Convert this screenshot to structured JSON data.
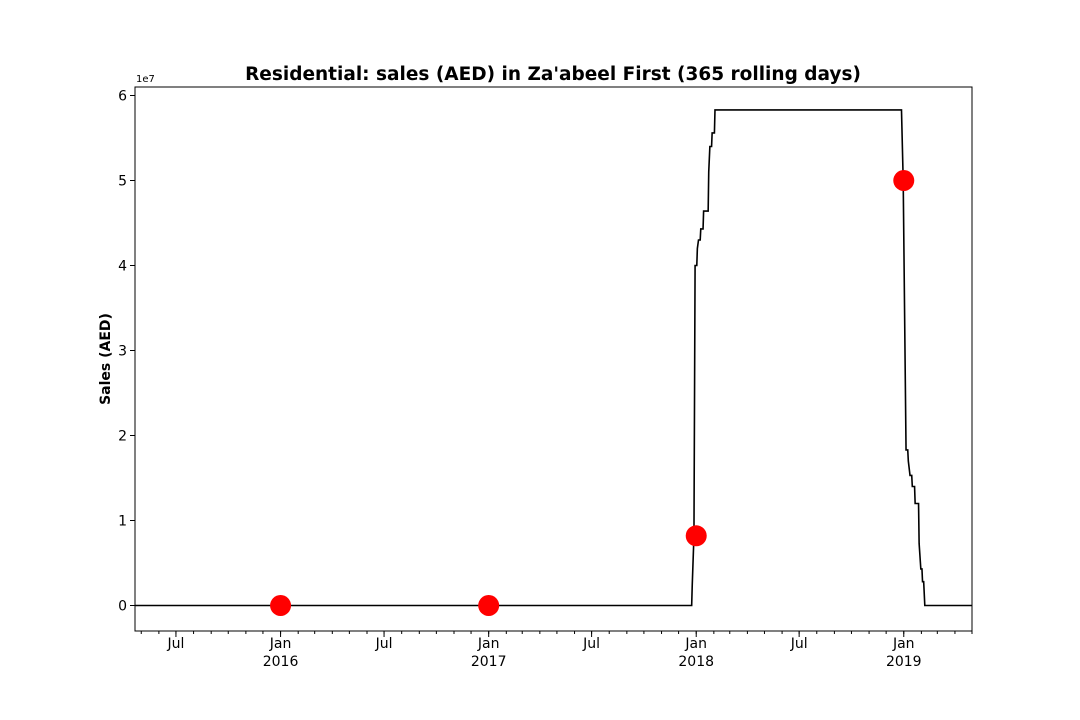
{
  "chart_data": {
    "type": "line",
    "title": "Residential: sales (AED) in Za'abeel First (365 rolling days)",
    "ylabel": "Sales (AED)",
    "xlabel": "",
    "y_offset_label": "1e7",
    "ylim": [
      -3000000,
      61000000
    ],
    "xlim": [
      "2015-04-20",
      "2019-05-01"
    ],
    "y_ticks": [
      0,
      10000000,
      20000000,
      30000000,
      40000000,
      50000000,
      60000000
    ],
    "y_tick_labels": [
      "0",
      "1",
      "2",
      "3",
      "4",
      "5",
      "6"
    ],
    "x_major_ticks": [
      {
        "date": "2015-07-01",
        "label": "Jul",
        "year": ""
      },
      {
        "date": "2016-01-01",
        "label": "Jan",
        "year": "2016"
      },
      {
        "date": "2016-07-01",
        "label": "Jul",
        "year": ""
      },
      {
        "date": "2017-01-01",
        "label": "Jan",
        "year": "2017"
      },
      {
        "date": "2017-07-01",
        "label": "Jul",
        "year": ""
      },
      {
        "date": "2018-01-01",
        "label": "Jan",
        "year": "2018"
      },
      {
        "date": "2018-07-01",
        "label": "Jul",
        "year": ""
      },
      {
        "date": "2019-01-01",
        "label": "Jan",
        "year": "2019"
      }
    ],
    "grid": false,
    "series": [
      {
        "color": "#000000",
        "points": [
          [
            "2015-04-20",
            0
          ],
          [
            "2017-12-24",
            0
          ],
          [
            "2017-12-25",
            2400000
          ],
          [
            "2017-12-28",
            8200000
          ],
          [
            "2017-12-30",
            40000000
          ],
          [
            "2018-01-02",
            40000000
          ],
          [
            "2018-01-03",
            42000000
          ],
          [
            "2018-01-05",
            43000000
          ],
          [
            "2018-01-08",
            43000000
          ],
          [
            "2018-01-09",
            44300000
          ],
          [
            "2018-01-13",
            44300000
          ],
          [
            "2018-01-14",
            46400000
          ],
          [
            "2018-01-22",
            46400000
          ],
          [
            "2018-01-23",
            51000000
          ],
          [
            "2018-01-25",
            54000000
          ],
          [
            "2018-01-28",
            54000000
          ],
          [
            "2018-01-29",
            55600000
          ],
          [
            "2018-02-02",
            55600000
          ],
          [
            "2018-02-03",
            58300000
          ],
          [
            "2018-12-28",
            58300000
          ],
          [
            "2018-12-31",
            50000000
          ],
          [
            "2019-01-05",
            18300000
          ],
          [
            "2019-01-08",
            18300000
          ],
          [
            "2019-01-09",
            17000000
          ],
          [
            "2019-01-12",
            15300000
          ],
          [
            "2019-01-15",
            15300000
          ],
          [
            "2019-01-16",
            14000000
          ],
          [
            "2019-01-20",
            14000000
          ],
          [
            "2019-01-21",
            12000000
          ],
          [
            "2019-01-27",
            12000000
          ],
          [
            "2019-01-28",
            7300000
          ],
          [
            "2019-01-31",
            4300000
          ],
          [
            "2019-02-02",
            4300000
          ],
          [
            "2019-02-03",
            2800000
          ],
          [
            "2019-02-05",
            2800000
          ],
          [
            "2019-02-07",
            0
          ],
          [
            "2019-05-01",
            0
          ]
        ]
      }
    ],
    "markers": {
      "color": "#ff0000",
      "points": [
        [
          "2016-01-01",
          0
        ],
        [
          "2017-01-01",
          0
        ],
        [
          "2018-01-01",
          8200000
        ],
        [
          "2019-01-01",
          50000000
        ]
      ]
    }
  }
}
